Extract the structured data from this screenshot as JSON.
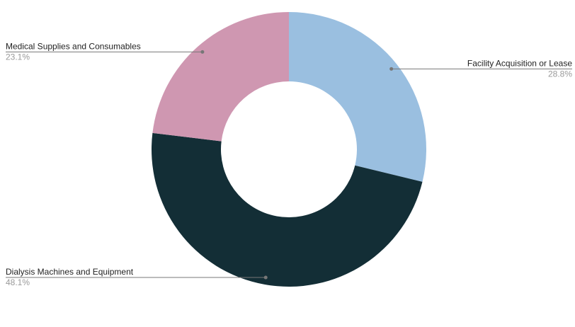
{
  "chart_data": {
    "type": "donut",
    "categories": [
      "Facility Acquisition or Lease",
      "Dialysis Machines and Equipment",
      "Medical Supplies and Consumables"
    ],
    "values": [
      28.8,
      48.1,
      23.1
    ],
    "value_labels": [
      "28.8%",
      "48.1%",
      "23.1%"
    ],
    "colors": [
      "#9abfe0",
      "#132e36",
      "#cf97b1"
    ]
  }
}
